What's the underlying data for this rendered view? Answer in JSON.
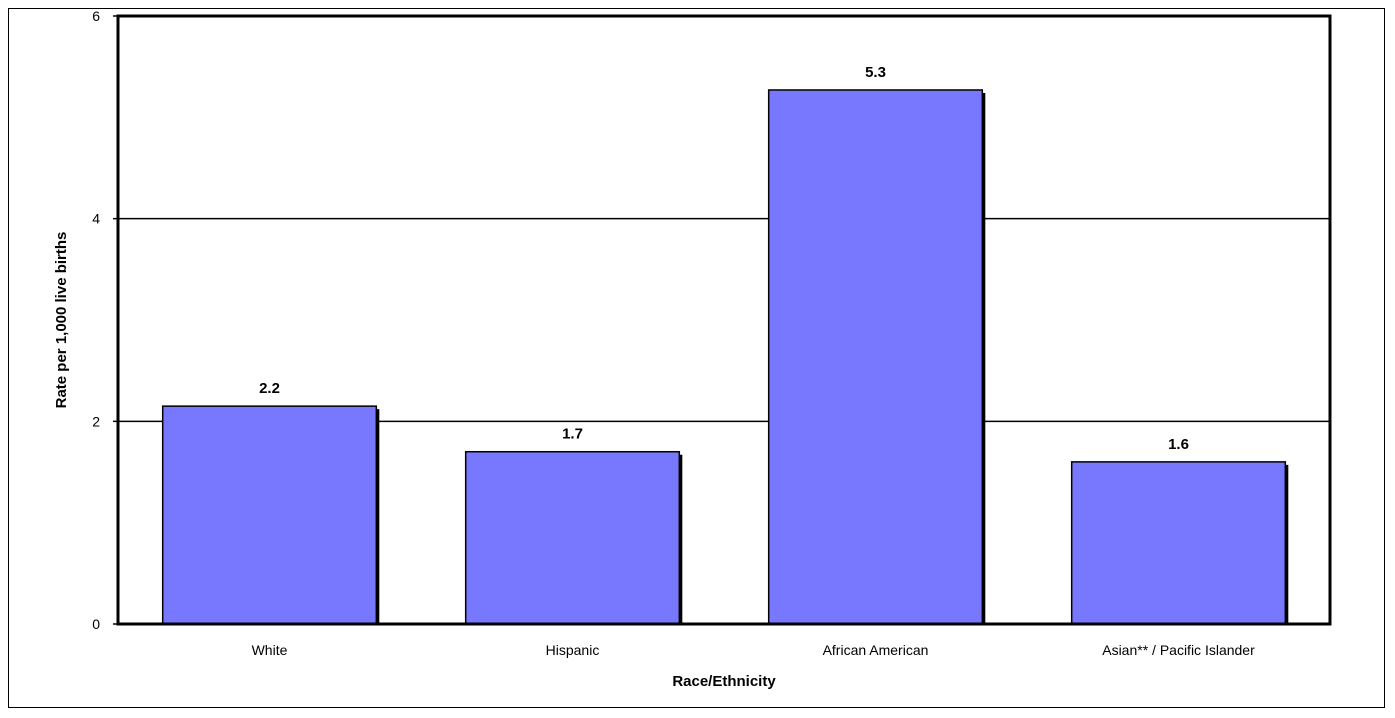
{
  "chart_data": {
    "type": "bar",
    "title": "",
    "xlabel": "Race/Ethnicity",
    "ylabel": "Rate per 1,000 live births",
    "categories": [
      "White",
      "Hispanic",
      "African American",
      "Asian** / Pacific Islander"
    ],
    "values": [
      2.15,
      1.7,
      5.27,
      1.6
    ],
    "data_labels": [
      "2.2",
      "1.7",
      "5.3",
      "1.6"
    ],
    "ylim": [
      0,
      6
    ],
    "yticks": [
      "0",
      "2",
      "4",
      "6"
    ],
    "grid": true,
    "bar_color": "#7878ff",
    "legend": "none"
  }
}
